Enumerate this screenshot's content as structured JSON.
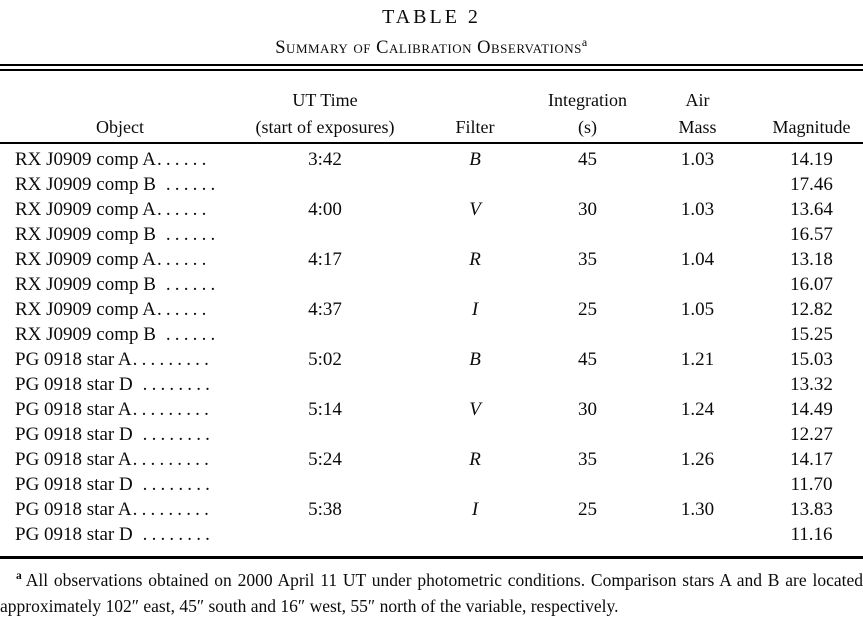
{
  "page": {
    "background_color": "#ffffff",
    "text_color": "#0b0b0b",
    "rule_color": "#000000"
  },
  "table": {
    "number_label": "TABLE 2",
    "title": "Summary of Calibration Observations",
    "title_footnote_marker": "a",
    "columns": [
      {
        "line1": "",
        "line2": "Object"
      },
      {
        "line1": "UT Time",
        "line2": "(start of exposures)"
      },
      {
        "line1": "",
        "line2": "Filter"
      },
      {
        "line1": "Integration",
        "line2": "(s)"
      },
      {
        "line1": "Air",
        "line2": "Mass"
      },
      {
        "line1": "",
        "line2": "Magnitude"
      }
    ],
    "rows": [
      {
        "object": "RX J0909 comp A",
        "leader": "......",
        "ut_time": "3:42",
        "filter": "B",
        "integration": "45",
        "air_mass": "1.03",
        "magnitude": "14.19"
      },
      {
        "object": "RX J0909 comp B",
        "leader": " ......",
        "ut_time": "",
        "filter": "",
        "integration": "",
        "air_mass": "",
        "magnitude": "17.46"
      },
      {
        "object": "RX J0909 comp A",
        "leader": "......",
        "ut_time": "4:00",
        "filter": "V",
        "integration": "30",
        "air_mass": "1.03",
        "magnitude": "13.64"
      },
      {
        "object": "RX J0909 comp B",
        "leader": " ......",
        "ut_time": "",
        "filter": "",
        "integration": "",
        "air_mass": "",
        "magnitude": "16.57"
      },
      {
        "object": "RX J0909 comp A",
        "leader": "......",
        "ut_time": "4:17",
        "filter": "R",
        "integration": "35",
        "air_mass": "1.04",
        "magnitude": "13.18"
      },
      {
        "object": "RX J0909 comp B",
        "leader": " ......",
        "ut_time": "",
        "filter": "",
        "integration": "",
        "air_mass": "",
        "magnitude": "16.07"
      },
      {
        "object": "RX J0909 comp A",
        "leader": "......",
        "ut_time": "4:37",
        "filter": "I",
        "integration": "25",
        "air_mass": "1.05",
        "magnitude": "12.82"
      },
      {
        "object": "RX J0909 comp B",
        "leader": " ......",
        "ut_time": "",
        "filter": "",
        "integration": "",
        "air_mass": "",
        "magnitude": "15.25"
      },
      {
        "object": "PG 0918 star A",
        "leader": ".........",
        "ut_time": "5:02",
        "filter": "B",
        "integration": "45",
        "air_mass": "1.21",
        "magnitude": "15.03"
      },
      {
        "object": "PG 0918 star D",
        "leader": " ........",
        "ut_time": "",
        "filter": "",
        "integration": "",
        "air_mass": "",
        "magnitude": "13.32"
      },
      {
        "object": "PG 0918 star A",
        "leader": ".........",
        "ut_time": "5:14",
        "filter": "V",
        "integration": "30",
        "air_mass": "1.24",
        "magnitude": "14.49"
      },
      {
        "object": "PG 0918 star D",
        "leader": " ........",
        "ut_time": "",
        "filter": "",
        "integration": "",
        "air_mass": "",
        "magnitude": "12.27"
      },
      {
        "object": "PG 0918 star A",
        "leader": ".........",
        "ut_time": "5:24",
        "filter": "R",
        "integration": "35",
        "air_mass": "1.26",
        "magnitude": "14.17"
      },
      {
        "object": "PG 0918 star D",
        "leader": " ........",
        "ut_time": "",
        "filter": "",
        "integration": "",
        "air_mass": "",
        "magnitude": "11.70"
      },
      {
        "object": "PG 0918 star A",
        "leader": ".........",
        "ut_time": "5:38",
        "filter": "I",
        "integration": "25",
        "air_mass": "1.30",
        "magnitude": "13.83"
      },
      {
        "object": "PG 0918 star D",
        "leader": " ........",
        "ut_time": "",
        "filter": "",
        "integration": "",
        "air_mass": "",
        "magnitude": "11.16"
      }
    ]
  },
  "footnote": {
    "marker": "a",
    "text": "All observations obtained on 2000 April 11 UT under photometric conditions. Comparison stars A and B are located approximately 102″ east, 45″ south and 16″ west, 55″ north of the variable, respectively."
  }
}
